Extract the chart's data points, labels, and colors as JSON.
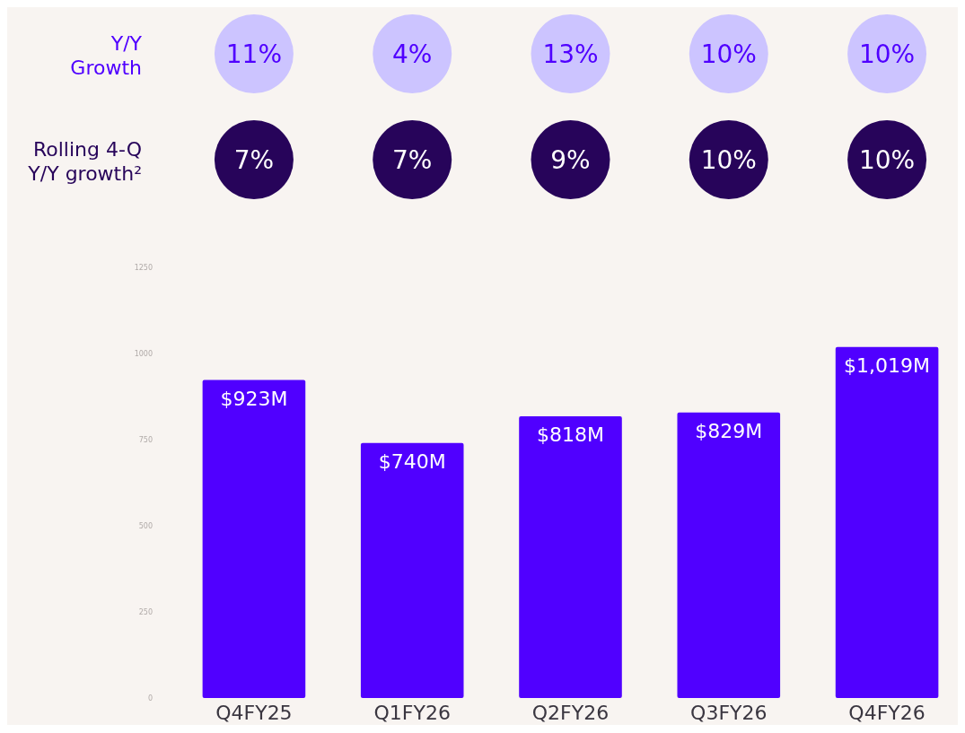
{
  "chart_data": [
    {
      "type": "other",
      "title": "Y/Y Growth",
      "categories": [
        null,
        null,
        null,
        null,
        null
      ],
      "series": [
        {
          "color": "#ccc4ff",
          "values": [
            11,
            4,
            13,
            10,
            10
          ],
          "value_labels": [
            "11%",
            "4%",
            "13%",
            "10%",
            "10%"
          ]
        }
      ]
    },
    {
      "type": "other",
      "title": "Rolling 4-Q Y/Y growth²",
      "categories": [
        null,
        null,
        null,
        null,
        null
      ],
      "series": [
        {
          "color": "#27045a",
          "values": [
            7,
            7,
            9,
            10,
            10
          ],
          "value_labels": [
            "7%",
            "7%",
            "9%",
            "10%",
            "10%"
          ]
        }
      ]
    },
    {
      "type": "bar",
      "categories": [
        "Q4FY25",
        "Q1FY26",
        "Q2FY26",
        "Q3FY26",
        "Q4FY26"
      ],
      "series": [
        {
          "type": "bar",
          "color": "#5000ff",
          "values": [
            923,
            740,
            818,
            829,
            1019
          ],
          "value_labels": [
            "$923M",
            "$740M",
            "$818M",
            "$829M",
            "$1,019M"
          ]
        }
      ],
      "ylim": [
        0,
        1250
      ],
      "yticks": [
        0,
        250,
        500,
        750,
        1000,
        1250
      ]
    }
  ]
}
